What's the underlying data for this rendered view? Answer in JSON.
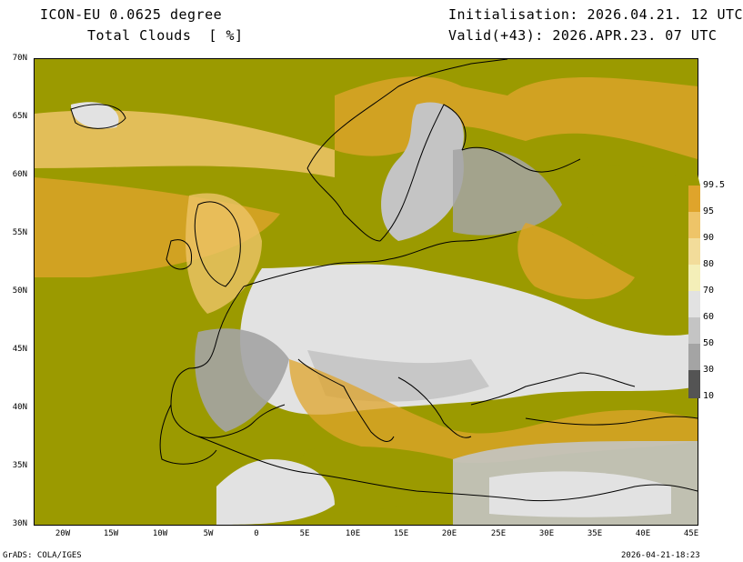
{
  "header": {
    "model": "ICON-EU 0.0625 degree",
    "field": "Total Clouds  [ %]",
    "init": "Initialisation: 2026.04.21. 12 UTC",
    "valid": "Valid(+43): 2026.APR.23. 07 UTC"
  },
  "footer": {
    "left": "GrADS: COLA/IGES",
    "right": "2026-04-21-18:23"
  },
  "axes": {
    "lat_labels": [
      "70N",
      "65N",
      "60N",
      "55N",
      "50N",
      "45N",
      "40N",
      "35N",
      "30N"
    ],
    "lon_labels": [
      "20W",
      "15W",
      "10W",
      "5W",
      "0",
      "5E",
      "10E",
      "15E",
      "20E",
      "25E",
      "30E",
      "35E",
      "40E",
      "45E"
    ]
  },
  "legend": {
    "labels": [
      "99.5",
      "95",
      "90",
      "80",
      "70",
      "60",
      "50",
      "30",
      "10"
    ],
    "colors": [
      "#9b9a00",
      "#dfa42b",
      "#eec468",
      "#f2dc9a",
      "#f4efb8",
      "#e2e2e2",
      "#c4c4c4",
      "#a4a4a4",
      "#7c7c7c",
      "#545454"
    ]
  },
  "colors": {
    "overcast": "#9b9a00",
    "clear": "#e2e2e2",
    "border": "#000000"
  }
}
